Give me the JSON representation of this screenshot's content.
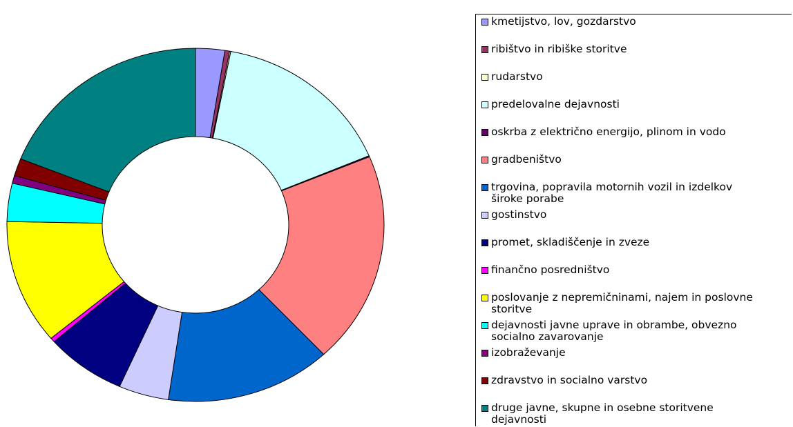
{
  "chart_data": {
    "type": "donut",
    "categories": [
      "kmetijstvo, lov, gozdarstvo",
      "ribištvo in ribiške storitve",
      "rudarstvo",
      "predelovalne dejavnosti",
      "oskrba z električno energijo, plinom in vodo",
      "gradbeništvo",
      "trgovina, popravila motornih vozil in izdelkov široke porabe",
      "gostinstvo",
      "promet, skladiščenje in zveze",
      "finančno posredništvo",
      "poslovanje z nepremičninami, najem in poslovne storitve",
      "dejavnosti javne uprave in obrambe, obvezno socialno zavarovanje",
      "izobraževanje",
      "zdravstvo in socialno varstvo",
      "druge javne, skupne in osebne storitvene dejavnosti"
    ],
    "values": [
      2.5,
      0.4,
      0.1,
      15.6,
      0.1,
      19.4,
      14.2,
      4.3,
      6.9,
      0.4,
      11.4,
      3.5,
      0.7,
      1.6,
      18.9
    ],
    "colors": [
      "#9999ff",
      "#993366",
      "#ffffcc",
      "#ccffff",
      "#660066",
      "#ff8080",
      "#0066cc",
      "#ccccff",
      "#000080",
      "#ff00ff",
      "#ffff00",
      "#00ffff",
      "#800080",
      "#800000",
      "#008080"
    ],
    "legend": "right"
  }
}
